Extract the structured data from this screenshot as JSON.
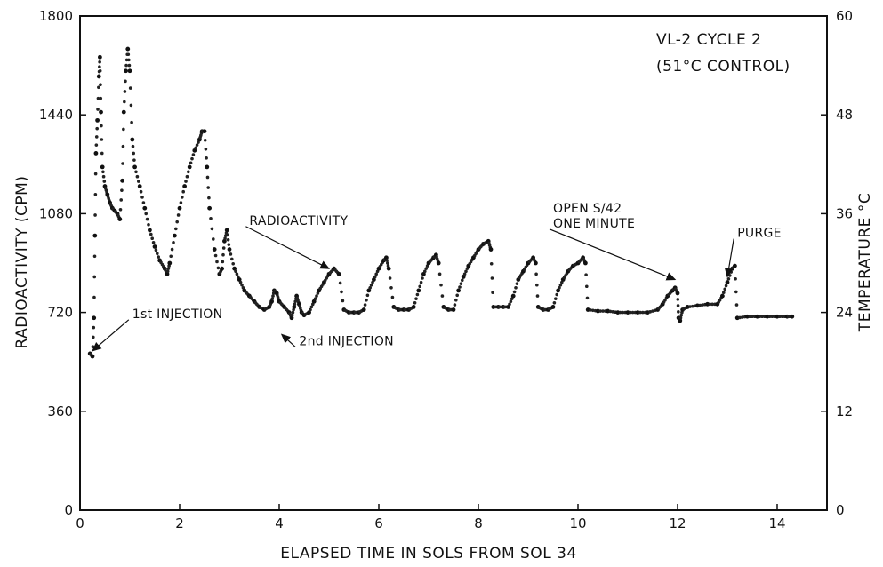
{
  "chart_data": {
    "type": "scatter",
    "title_lines": [
      "VL-2  CYCLE 2",
      "(51°C CONTROL)"
    ],
    "xlabel": "ELAPSED TIME IN SOLS FROM SOL 34",
    "ylabel": "RADIOACTIVITY (CPM)",
    "y2label": "TEMPERATURE °C",
    "xlim": [
      0,
      15
    ],
    "ylim": [
      0,
      1800
    ],
    "y2lim": [
      0,
      60
    ],
    "x_ticks": [
      "0",
      "2",
      "4",
      "6",
      "8",
      "10",
      "12",
      "14"
    ],
    "x_tick_values": [
      0,
      2,
      4,
      6,
      8,
      10,
      12,
      14
    ],
    "y_ticks": [
      "0",
      "360",
      "720",
      "1080",
      "1440",
      "1800"
    ],
    "y_tick_values": [
      0,
      360,
      720,
      1080,
      1440,
      1800
    ],
    "y2_ticks": [
      "0",
      "12",
      "24",
      "36",
      "48",
      "60"
    ],
    "y2_tick_values": [
      0,
      12,
      24,
      36,
      48,
      60
    ],
    "grid": false,
    "legend": "none",
    "series": [
      {
        "points": [
          [
            0.2,
            570
          ],
          [
            0.25,
            560
          ],
          [
            0.28,
            700
          ],
          [
            0.3,
            1000
          ],
          [
            0.32,
            1300
          ],
          [
            0.35,
            1420
          ],
          [
            0.38,
            1580
          ],
          [
            0.4,
            1650
          ],
          [
            0.42,
            1450
          ],
          [
            0.45,
            1250
          ],
          [
            0.5,
            1180
          ],
          [
            0.55,
            1150
          ],
          [
            0.6,
            1120
          ],
          [
            0.65,
            1100
          ],
          [
            0.7,
            1090
          ],
          [
            0.75,
            1080
          ],
          [
            0.8,
            1060
          ],
          [
            0.85,
            1200
          ],
          [
            0.88,
            1450
          ],
          [
            0.92,
            1600
          ],
          [
            0.96,
            1680
          ],
          [
            1.0,
            1600
          ],
          [
            1.05,
            1350
          ],
          [
            1.1,
            1250
          ],
          [
            1.2,
            1180
          ],
          [
            1.3,
            1100
          ],
          [
            1.4,
            1020
          ],
          [
            1.5,
            960
          ],
          [
            1.6,
            910
          ],
          [
            1.7,
            880
          ],
          [
            1.75,
            860
          ],
          [
            1.8,
            900
          ],
          [
            1.9,
            1000
          ],
          [
            2.0,
            1100
          ],
          [
            2.1,
            1180
          ],
          [
            2.2,
            1250
          ],
          [
            2.3,
            1310
          ],
          [
            2.4,
            1350
          ],
          [
            2.45,
            1380
          ],
          [
            2.5,
            1380
          ],
          [
            2.55,
            1250
          ],
          [
            2.6,
            1100
          ],
          [
            2.7,
            950
          ],
          [
            2.8,
            860
          ],
          [
            2.85,
            880
          ],
          [
            2.9,
            980
          ],
          [
            2.95,
            1020
          ],
          [
            3.0,
            950
          ],
          [
            3.1,
            880
          ],
          [
            3.2,
            840
          ],
          [
            3.3,
            800
          ],
          [
            3.4,
            780
          ],
          [
            3.5,
            760
          ],
          [
            3.6,
            740
          ],
          [
            3.7,
            730
          ],
          [
            3.8,
            740
          ],
          [
            3.85,
            760
          ],
          [
            3.9,
            800
          ],
          [
            3.95,
            790
          ],
          [
            4.0,
            760
          ],
          [
            4.1,
            740
          ],
          [
            4.2,
            720
          ],
          [
            4.25,
            700
          ],
          [
            4.3,
            740
          ],
          [
            4.35,
            780
          ],
          [
            4.4,
            750
          ],
          [
            4.45,
            720
          ],
          [
            4.5,
            710
          ],
          [
            4.6,
            720
          ],
          [
            4.7,
            760
          ],
          [
            4.8,
            800
          ],
          [
            4.9,
            830
          ],
          [
            5.0,
            860
          ],
          [
            5.1,
            880
          ],
          [
            5.2,
            860
          ],
          [
            5.3,
            730
          ],
          [
            5.4,
            720
          ],
          [
            5.5,
            720
          ],
          [
            5.6,
            720
          ],
          [
            5.7,
            730
          ],
          [
            5.8,
            800
          ],
          [
            5.9,
            840
          ],
          [
            6.0,
            880
          ],
          [
            6.1,
            910
          ],
          [
            6.15,
            920
          ],
          [
            6.2,
            880
          ],
          [
            6.3,
            740
          ],
          [
            6.4,
            730
          ],
          [
            6.5,
            730
          ],
          [
            6.6,
            730
          ],
          [
            6.7,
            740
          ],
          [
            6.8,
            800
          ],
          [
            6.9,
            860
          ],
          [
            7.0,
            900
          ],
          [
            7.1,
            920
          ],
          [
            7.15,
            930
          ],
          [
            7.2,
            900
          ],
          [
            7.3,
            740
          ],
          [
            7.4,
            730
          ],
          [
            7.5,
            730
          ],
          [
            7.6,
            800
          ],
          [
            7.7,
            850
          ],
          [
            7.8,
            890
          ],
          [
            7.9,
            920
          ],
          [
            8.0,
            950
          ],
          [
            8.1,
            970
          ],
          [
            8.2,
            980
          ],
          [
            8.25,
            950
          ],
          [
            8.3,
            740
          ],
          [
            8.4,
            740
          ],
          [
            8.5,
            740
          ],
          [
            8.6,
            740
          ],
          [
            8.7,
            780
          ],
          [
            8.8,
            840
          ],
          [
            8.9,
            870
          ],
          [
            9.0,
            900
          ],
          [
            9.1,
            920
          ],
          [
            9.15,
            900
          ],
          [
            9.2,
            740
          ],
          [
            9.3,
            730
          ],
          [
            9.4,
            730
          ],
          [
            9.5,
            740
          ],
          [
            9.6,
            800
          ],
          [
            9.7,
            840
          ],
          [
            9.8,
            870
          ],
          [
            9.9,
            890
          ],
          [
            10.0,
            900
          ],
          [
            10.1,
            920
          ],
          [
            10.15,
            900
          ],
          [
            10.2,
            730
          ],
          [
            10.4,
            725
          ],
          [
            10.6,
            725
          ],
          [
            10.8,
            720
          ],
          [
            11.0,
            720
          ],
          [
            11.2,
            720
          ],
          [
            11.4,
            720
          ],
          [
            11.6,
            730
          ],
          [
            11.7,
            750
          ],
          [
            11.8,
            780
          ],
          [
            11.9,
            800
          ],
          [
            11.95,
            810
          ],
          [
            12.0,
            790
          ],
          [
            12.02,
            700
          ],
          [
            12.05,
            690
          ],
          [
            12.1,
            730
          ],
          [
            12.2,
            740
          ],
          [
            12.4,
            745
          ],
          [
            12.6,
            750
          ],
          [
            12.8,
            750
          ],
          [
            12.9,
            780
          ],
          [
            13.0,
            830
          ],
          [
            13.1,
            880
          ],
          [
            13.15,
            890
          ],
          [
            13.2,
            700
          ],
          [
            13.4,
            705
          ],
          [
            13.6,
            705
          ],
          [
            13.8,
            705
          ],
          [
            14.0,
            705
          ],
          [
            14.2,
            705
          ],
          [
            14.3,
            705
          ]
        ]
      }
    ],
    "annotations": [
      {
        "text": "1st INJECTION",
        "x": 1.05,
        "y": 700,
        "arrow_to": [
          0.25,
          580
        ]
      },
      {
        "text": "2nd INJECTION",
        "x": 4.4,
        "y": 600,
        "arrow_to": [
          4.05,
          640
        ]
      },
      {
        "text": "RADIOACTIVITY",
        "x": 3.4,
        "y": 1040,
        "arrow_to": [
          5.0,
          880
        ]
      },
      {
        "text": "OPEN S/42",
        "x": 9.5,
        "y": 1085,
        "arrow_to": null
      },
      {
        "text": "ONE MINUTE",
        "x": 9.5,
        "y": 1030,
        "arrow_to": [
          11.95,
          840
        ]
      },
      {
        "text": "PURGE",
        "x": 13.2,
        "y": 995,
        "arrow_to": [
          13.0,
          850
        ]
      }
    ]
  }
}
